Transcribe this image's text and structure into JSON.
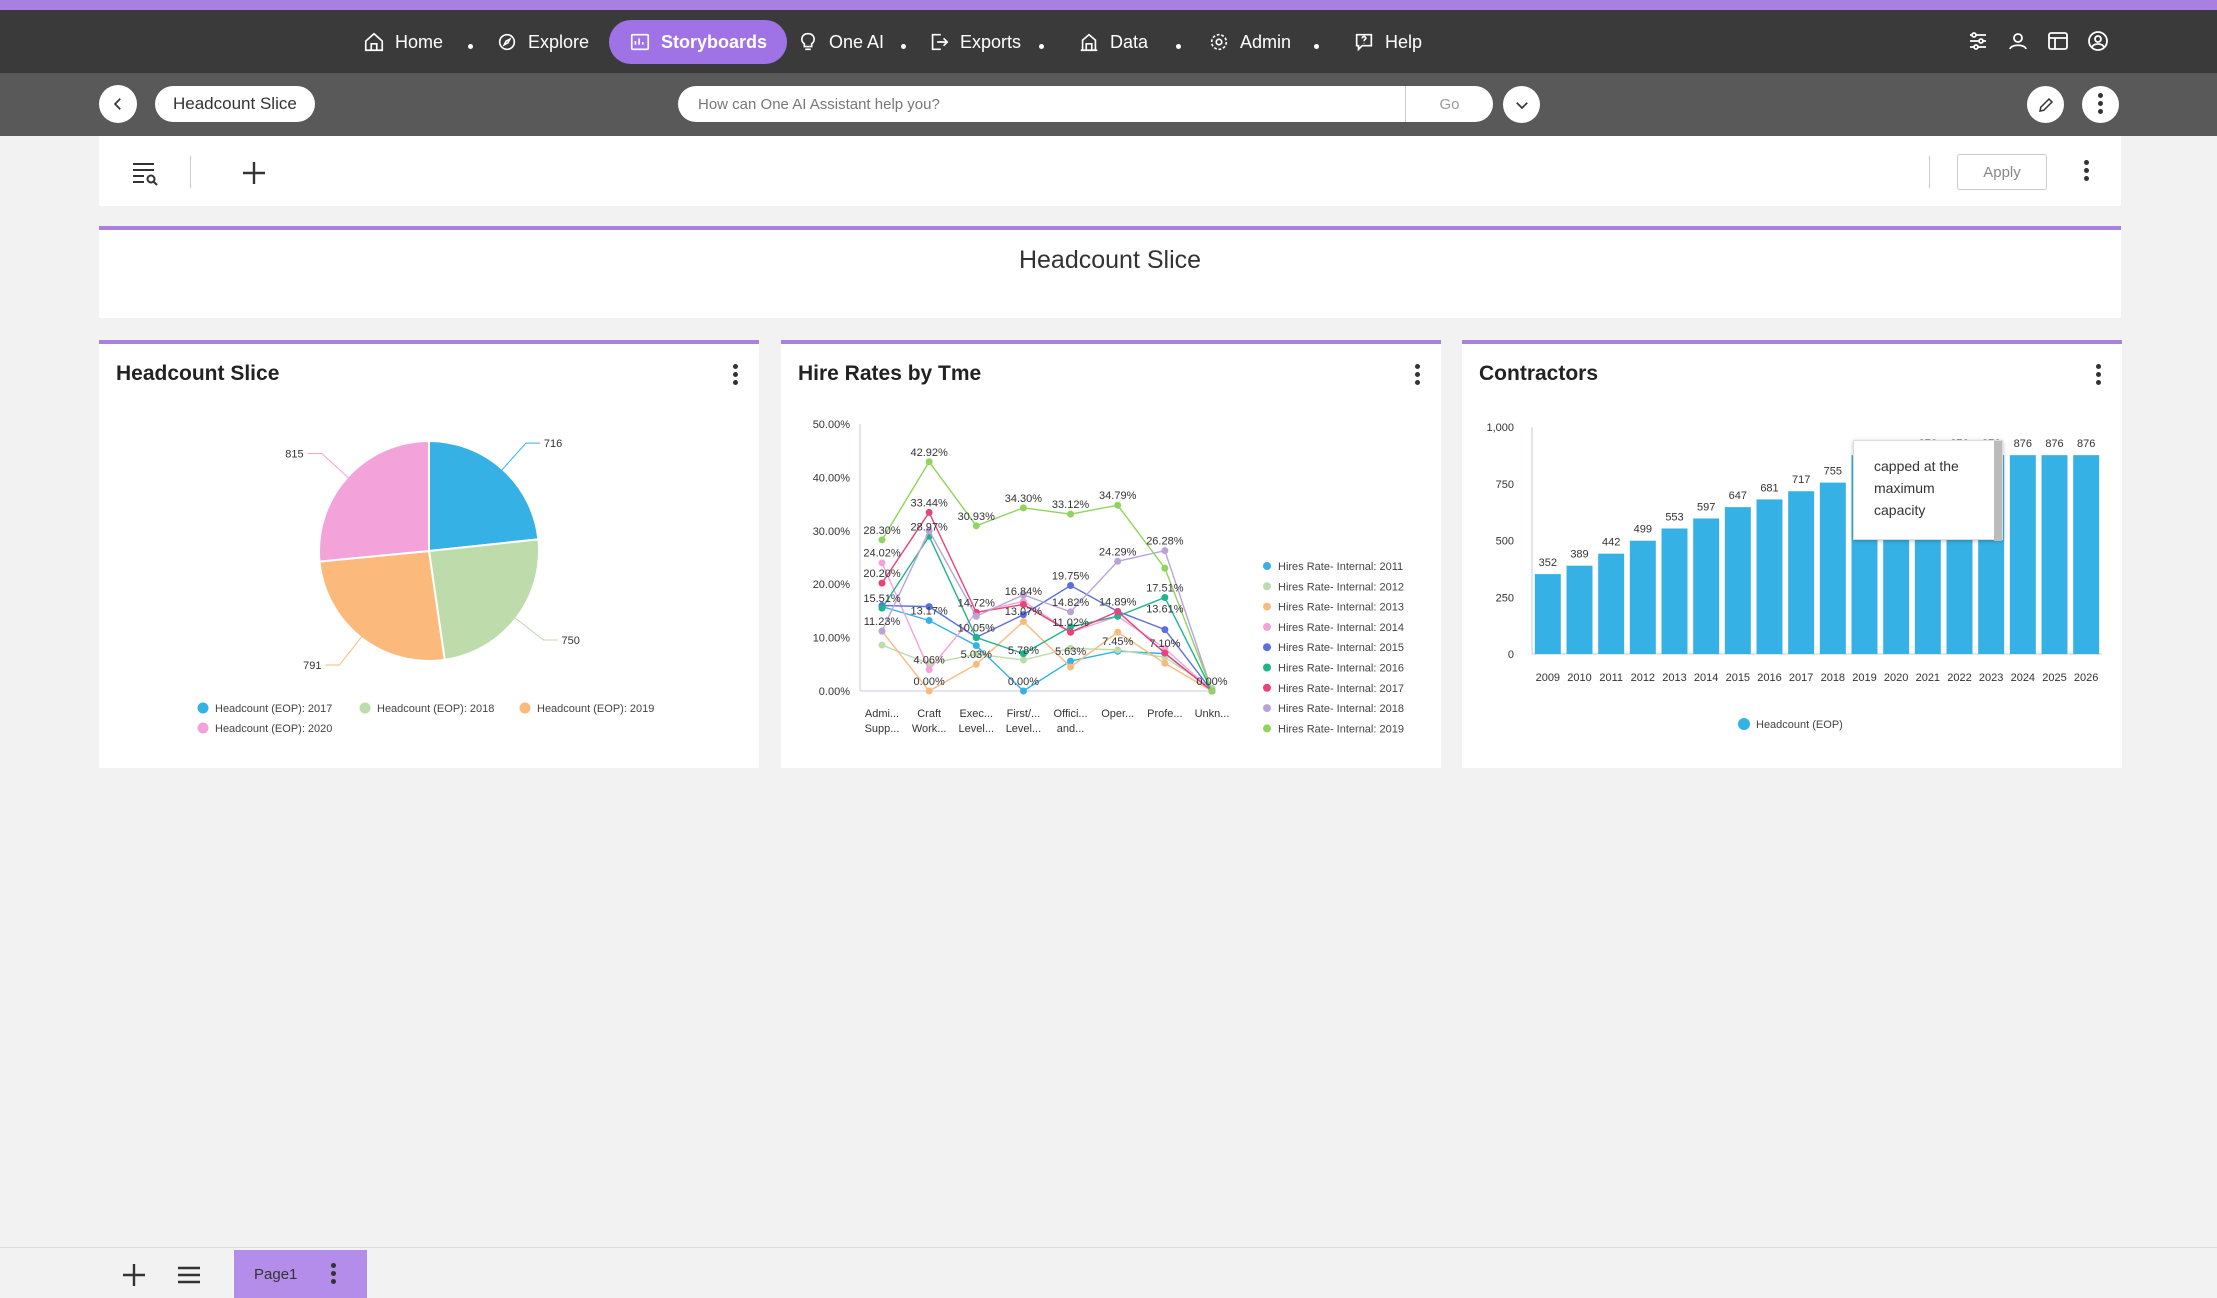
{
  "nav": {
    "items": [
      {
        "label": "Home",
        "icon": "home-icon"
      },
      {
        "label": "Explore",
        "icon": "explore-icon"
      },
      {
        "label": "Storyboards",
        "icon": "storyboards-icon",
        "active": true
      },
      {
        "label": "One AI",
        "icon": "lightbulb-icon"
      },
      {
        "label": "Exports",
        "icon": "export-icon"
      },
      {
        "label": "Data",
        "icon": "data-icon"
      },
      {
        "label": "Admin",
        "icon": "gear-icon"
      },
      {
        "label": "Help",
        "icon": "help-icon"
      }
    ],
    "right_icons": [
      "settings-sliders-icon",
      "users-icon",
      "dashboard-icon",
      "account-icon"
    ]
  },
  "subbar": {
    "storyboard_title": "Headcount Slice",
    "search_placeholder": "How can One AI Assistant help you?",
    "go_label": "Go"
  },
  "toolbar": {
    "apply_label": "Apply"
  },
  "page_title": "Headcount Slice",
  "widgets": {
    "pie": {
      "title": "Headcount Slice"
    },
    "line": {
      "title": "Hire Rates by Tme"
    },
    "bar": {
      "title": "Contractors",
      "tooltip": "capped at the maximum capacity"
    }
  },
  "bottom": {
    "page_tab": "Page1"
  },
  "colors": {
    "accent": "#a97fe0",
    "bar": "#35b1e6"
  },
  "chart_data": [
    {
      "type": "pie",
      "title": "Headcount Slice",
      "series": [
        {
          "name": "Headcount (EOP): 2017",
          "value": 716,
          "color": "#35b1e6"
        },
        {
          "name": "Headcount (EOP): 2018",
          "value": 750,
          "color": "#bedbab"
        },
        {
          "name": "Headcount (EOP): 2019",
          "value": 791,
          "color": "#fbba7c"
        },
        {
          "name": "Headcount (EOP): 2020",
          "value": 815,
          "color": "#f4a3da"
        }
      ],
      "legend": "bottom"
    },
    {
      "type": "line",
      "title": "Hire Rates by Tme",
      "categories": [
        "Admi... Supp...",
        "Craft Work...",
        "Exec... Level...",
        "First/... Level...",
        "Offici... and...",
        "Oper...",
        "Profe...",
        "Unkn..."
      ],
      "ylim": [
        0,
        50
      ],
      "yticks": [
        "0.00%",
        "10.00%",
        "20.00%",
        "30.00%",
        "40.00%",
        "50.00%"
      ],
      "legend": "right",
      "series": [
        {
          "name": "Hires Rate- Internal: 2011",
          "color": "#35b1e6",
          "values": [
            15.8,
            13.2,
            8.5,
            0.0,
            5.6,
            7.45,
            7.0,
            0.0
          ]
        },
        {
          "name": "Hires Rate- Internal: 2012",
          "color": "#bedbab",
          "values": [
            8.6,
            5.1,
            6.9,
            5.8,
            8.0,
            7.7,
            6.3,
            0.5
          ]
        },
        {
          "name": "Hires Rate- Internal: 2013",
          "color": "#fbba7c",
          "values": [
            11.2,
            0.0,
            5.0,
            13.0,
            4.5,
            11.0,
            5.2,
            0.0
          ]
        },
        {
          "name": "Hires Rate- Internal: 2014",
          "color": "#f4a3da",
          "values": [
            24.0,
            4.0,
            14.7,
            16.8,
            11.0,
            14.0,
            8.0,
            0.0
          ]
        },
        {
          "name": "Hires Rate- Internal: 2015",
          "color": "#5b6fe0",
          "values": [
            16.0,
            15.8,
            10.05,
            14.3,
            19.75,
            14.9,
            11.5,
            0.0
          ]
        },
        {
          "name": "Hires Rate- Internal: 2016",
          "color": "#1db58c",
          "values": [
            15.51,
            28.97,
            10.0,
            7.0,
            12.0,
            14.0,
            17.51,
            0.0
          ]
        },
        {
          "name": "Hires Rate- Internal: 2017",
          "color": "#e8447a",
          "values": [
            20.2,
            33.44,
            14.72,
            16.2,
            11.02,
            14.89,
            7.1,
            0.0
          ]
        },
        {
          "name": "Hires Rate- Internal: 2018",
          "color": "#b9a3d9",
          "values": [
            11.23,
            30.0,
            14.0,
            18.0,
            14.82,
            24.29,
            26.28,
            0.0
          ]
        },
        {
          "name": "Hires Rate- Internal: 2019",
          "color": "#8fd45c",
          "values": [
            28.3,
            42.92,
            30.93,
            34.3,
            33.12,
            34.79,
            23.0,
            0.0
          ]
        }
      ],
      "data_labels": [
        {
          "text": "42.92%",
          "cat": 1,
          "y": 42.92
        },
        {
          "text": "33.44%",
          "cat": 1,
          "y": 33.44
        },
        {
          "text": "28.97%",
          "cat": 1,
          "y": 28.97
        },
        {
          "text": "28.30%",
          "cat": 0,
          "y": 28.3
        },
        {
          "text": "24.02%",
          "cat": 0,
          "y": 24.02
        },
        {
          "text": "20.20%",
          "cat": 0,
          "y": 20.2
        },
        {
          "text": "15.51%",
          "cat": 0,
          "y": 15.51
        },
        {
          "text": "11.23%",
          "cat": 0,
          "y": 11.23
        },
        {
          "text": "13.17%",
          "cat": 1,
          "y": 13.17
        },
        {
          "text": "4.06%",
          "cat": 1,
          "y": 4.06
        },
        {
          "text": "0.00%",
          "cat": 1,
          "y": 0.0
        },
        {
          "text": "30.93%",
          "cat": 2,
          "y": 30.93
        },
        {
          "text": "14.72%",
          "cat": 2,
          "y": 14.72
        },
        {
          "text": "10.05%",
          "cat": 2,
          "y": 10.05
        },
        {
          "text": "5.03%",
          "cat": 2,
          "y": 5.03
        },
        {
          "text": "34.30%",
          "cat": 3,
          "y": 34.3
        },
        {
          "text": "16.84%",
          "cat": 3,
          "y": 16.84
        },
        {
          "text": "13.07%",
          "cat": 3,
          "y": 13.07
        },
        {
          "text": "5.78%",
          "cat": 3,
          "y": 5.78
        },
        {
          "text": "0.00%",
          "cat": 3,
          "y": 0.0
        },
        {
          "text": "33.12%",
          "cat": 4,
          "y": 33.12
        },
        {
          "text": "19.75%",
          "cat": 4,
          "y": 19.75
        },
        {
          "text": "14.82%",
          "cat": 4,
          "y": 14.82
        },
        {
          "text": "11.02%",
          "cat": 4,
          "y": 11.02
        },
        {
          "text": "5.63%",
          "cat": 4,
          "y": 5.63
        },
        {
          "text": "34.79%",
          "cat": 5,
          "y": 34.79
        },
        {
          "text": "24.29%",
          "cat": 5,
          "y": 24.29
        },
        {
          "text": "14.89%",
          "cat": 5,
          "y": 14.89
        },
        {
          "text": "7.45%",
          "cat": 5,
          "y": 7.45
        },
        {
          "text": "26.28%",
          "cat": 6,
          "y": 26.28
        },
        {
          "text": "17.51%",
          "cat": 6,
          "y": 17.51
        },
        {
          "text": "13.61%",
          "cat": 6,
          "y": 13.61
        },
        {
          "text": "7.10%",
          "cat": 6,
          "y": 7.1
        },
        {
          "text": "0.00%",
          "cat": 7,
          "y": 0.0
        }
      ]
    },
    {
      "type": "bar",
      "title": "Contractors",
      "categories": [
        "2009",
        "2010",
        "2011",
        "2012",
        "2013",
        "2014",
        "2015",
        "2016",
        "2017",
        "2018",
        "2019",
        "2020",
        "2021",
        "2022",
        "2023",
        "2024",
        "2025",
        "2026"
      ],
      "values": [
        352,
        389,
        442,
        499,
        553,
        597,
        647,
        681,
        717,
        755,
        876,
        876,
        876,
        876,
        876,
        876,
        876,
        876
      ],
      "labels": [
        "352",
        "389",
        "442",
        "499",
        "553",
        "597",
        "647",
        "681",
        "717",
        "755",
        "",
        "",
        "876",
        "876",
        "876",
        "876",
        "876",
        "876"
      ],
      "ylim": [
        0,
        1000
      ],
      "yticks": [
        "0",
        "250",
        "500",
        "750",
        "1,000"
      ],
      "legend_entries": [
        "Headcount (EOP)"
      ],
      "legend": "bottom"
    }
  ]
}
